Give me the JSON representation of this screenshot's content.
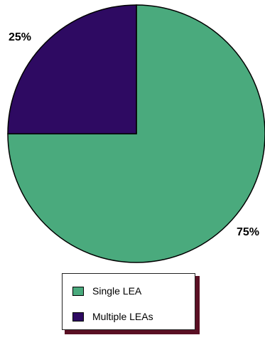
{
  "chart_data": {
    "type": "pie",
    "title": "",
    "slices": [
      {
        "label": "Single LEA",
        "value": 75,
        "value_label": "75%",
        "color": "#4aaa7d"
      },
      {
        "label": "Multiple LEAs",
        "value": 25,
        "value_label": "25%",
        "color": "#2e0a62"
      }
    ],
    "start": "top, clockwise",
    "legend_position": "bottom"
  },
  "colors": {
    "outline": "#000000",
    "legend_shadow": "#5a1024"
  }
}
